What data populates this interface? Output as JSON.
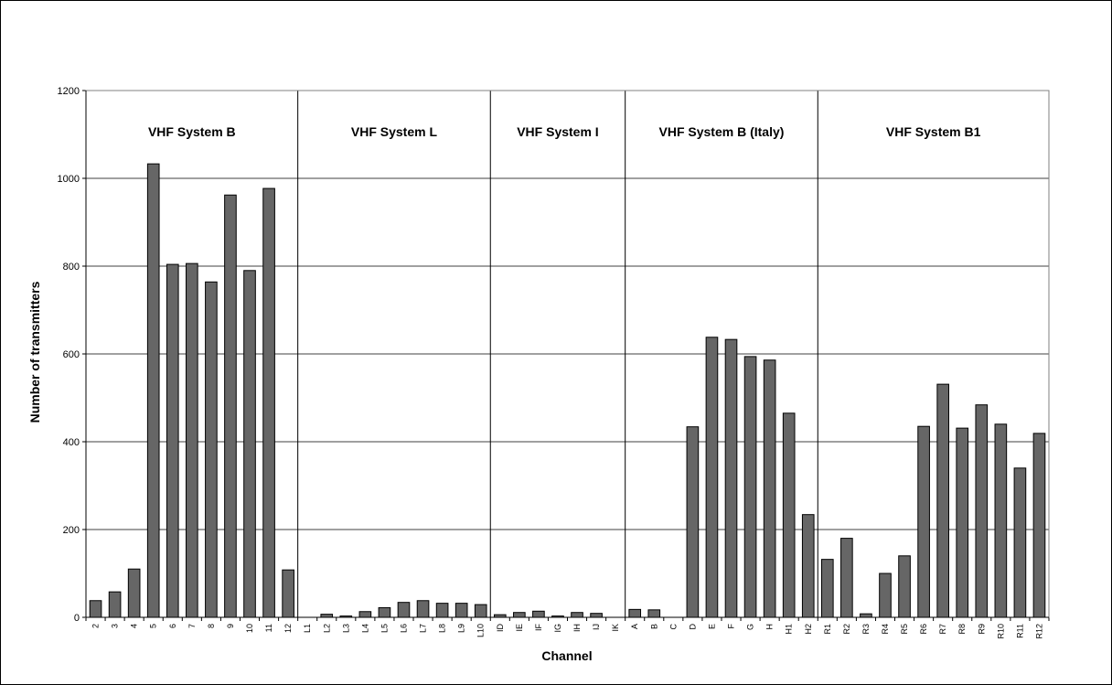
{
  "chart_data": {
    "type": "bar",
    "title": "",
    "xlabel": "Channel",
    "ylabel": "Number of transmitters",
    "ylim": [
      0,
      1200
    ],
    "yticks": [
      0,
      200,
      400,
      600,
      800,
      1000,
      1200
    ],
    "grid": true,
    "legend": "none",
    "bar_color": "#666666",
    "groups": [
      {
        "label": "VHF System B",
        "start": 0,
        "count": 11
      },
      {
        "label": "VHF System L",
        "start": 11,
        "count": 10
      },
      {
        "label": "VHF System I",
        "start": 21,
        "count": 7
      },
      {
        "label": "VHF System B (Italy)",
        "start": 28,
        "count": 10
      },
      {
        "label": "VHF System B1",
        "start": 38,
        "count": 12
      }
    ],
    "categories": [
      "2",
      "3",
      "4",
      "5",
      "6",
      "7",
      "8",
      "9",
      "10",
      "11",
      "12",
      "L1",
      "L2",
      "L3",
      "L4",
      "L5",
      "L6",
      "L7",
      "L8",
      "L9",
      "L10",
      "ID",
      "IE",
      "IF",
      "IG",
      "IH",
      "IJ",
      "IK",
      "A",
      "B",
      "C",
      "D",
      "E",
      "F",
      "G",
      "H",
      "H1",
      "H2",
      "R1",
      "R2",
      "R3",
      "R4",
      "R5",
      "R6",
      "R7",
      "R8",
      "R9",
      "R10",
      "R11",
      "R12"
    ],
    "values": [
      38,
      58,
      110,
      1033,
      804,
      806,
      764,
      962,
      790,
      977,
      108,
      0,
      7,
      3,
      13,
      22,
      34,
      38,
      32,
      32,
      29,
      6,
      11,
      14,
      3,
      11,
      9,
      0,
      18,
      17,
      0,
      434,
      638,
      633,
      594,
      586,
      465,
      234,
      132,
      180,
      8,
      100,
      140,
      435,
      531,
      431,
      484,
      440,
      340,
      419
    ]
  }
}
